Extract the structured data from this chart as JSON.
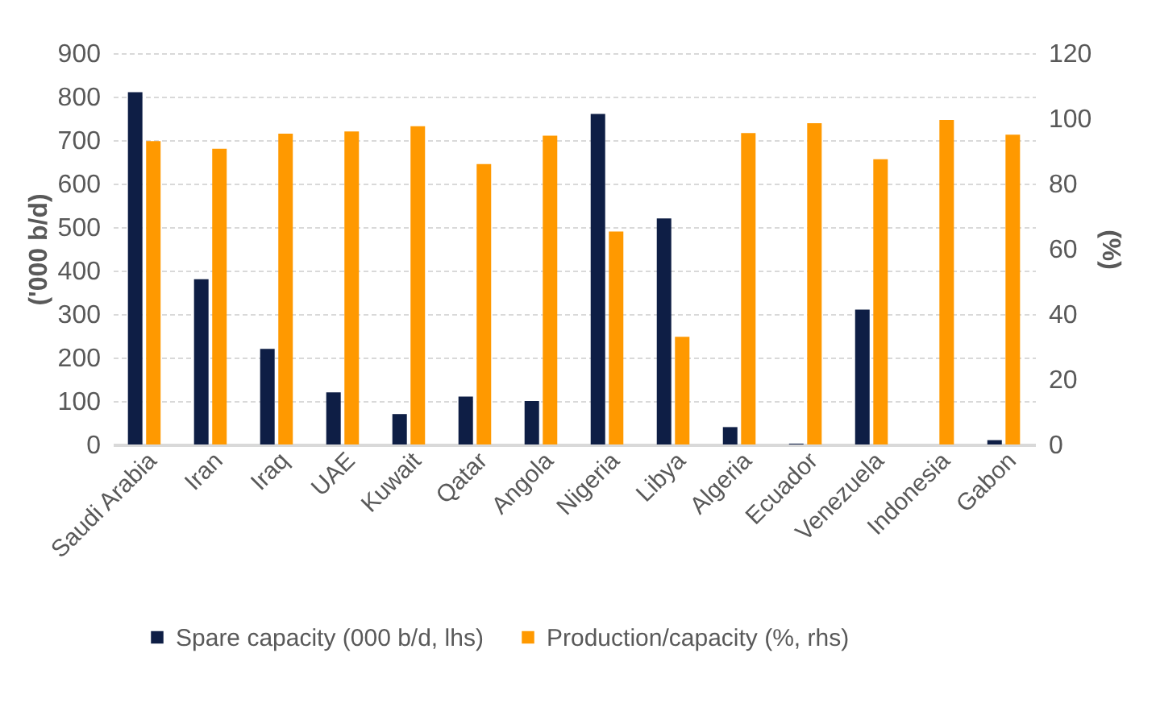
{
  "chart_data": {
    "type": "bar",
    "categories": [
      "Saudi Arabia",
      "Iran",
      "Iraq",
      "UAE",
      "Kuwait",
      "Qatar",
      "Angola",
      "Nigeria",
      "Libya",
      "Algeria",
      "Ecuador",
      "Venezuela",
      "Indonesia",
      "Gabon"
    ],
    "series": [
      {
        "name": "Spare capacity (000 b/d, lhs)",
        "color": "#0e1e45",
        "values": [
          810,
          380,
          220,
          120,
          70,
          110,
          100,
          760,
          520,
          40,
          2,
          310,
          0,
          10
        ]
      },
      {
        "name": "Production/capacity (%, rhs)",
        "color": "#ff9900",
        "axis": "y2",
        "values": [
          93,
          90.7,
          95.3,
          96,
          97.6,
          86,
          94.7,
          65.3,
          33,
          95.5,
          98.5,
          87.5,
          99.5,
          95
        ]
      }
    ],
    "ylabel": "('000 b/d)",
    "y2label": "(%)",
    "ylim": [
      0,
      900
    ],
    "yticks": [
      0,
      100,
      200,
      300,
      400,
      500,
      600,
      700,
      800,
      900
    ],
    "y2lim": [
      0,
      120
    ],
    "y2ticks": [
      0,
      20,
      40,
      60,
      80,
      100,
      120
    ],
    "grid": "y",
    "legend": "bottom"
  }
}
